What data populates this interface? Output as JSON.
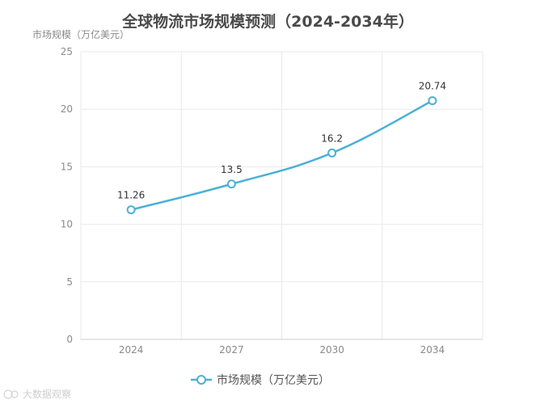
{
  "chart_data": {
    "type": "line",
    "title": "全球物流市场规模预测（2024-2034年）",
    "ylabel": "市场规模（万亿美元）",
    "xlabel": "",
    "categories": [
      "2024",
      "2027",
      "2030",
      "2034"
    ],
    "series": [
      {
        "name": "市场规模（万亿美元）",
        "values": [
          11.26,
          13.5,
          16.2,
          20.74
        ]
      }
    ],
    "data_labels": [
      "11.26",
      "13.5",
      "16.2",
      "20.74"
    ],
    "ylim": [
      0,
      25
    ],
    "yticks": [
      "0",
      "5",
      "10",
      "15",
      "20",
      "25"
    ],
    "grid": true,
    "smooth": true,
    "legend": "bottom-center",
    "colors": {
      "series": "#4bb0d6",
      "grid": "#e9e9e9",
      "axis": "#cccccc"
    }
  },
  "watermark": {
    "text": "大数据观察"
  }
}
